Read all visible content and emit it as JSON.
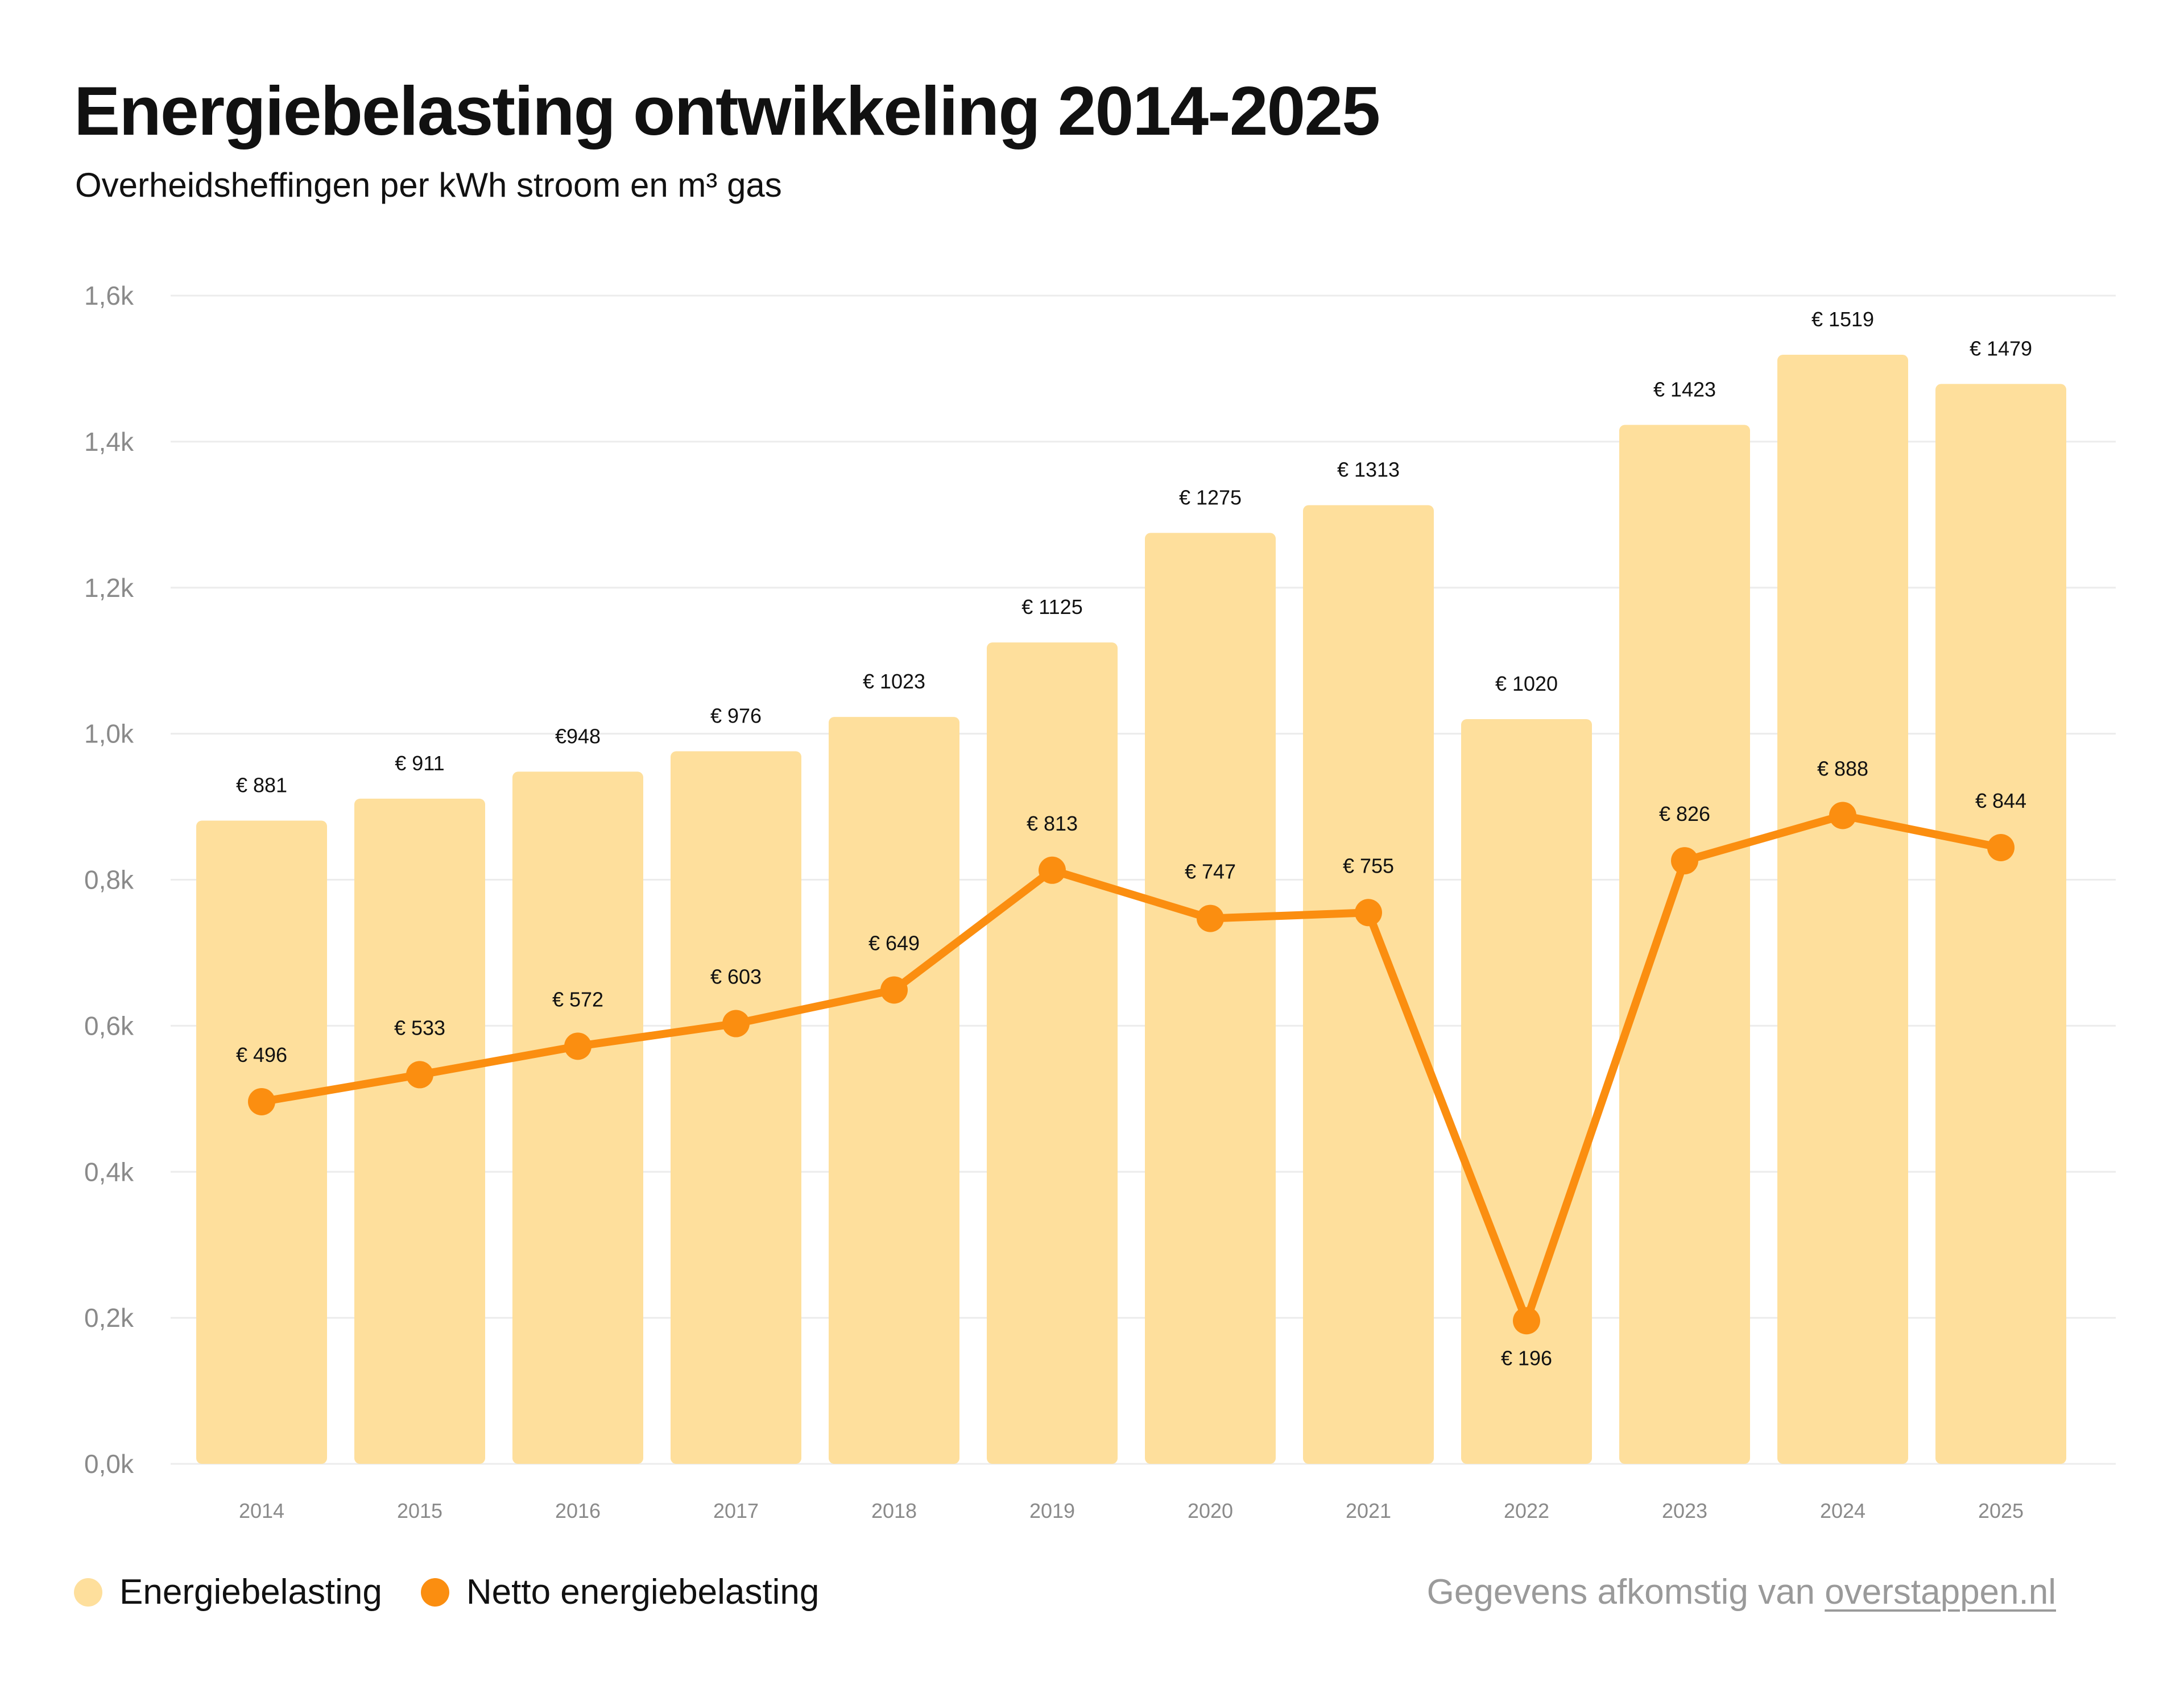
{
  "header": {
    "title": "Energiebelasting ontwikkeling 2014-2025",
    "subtitle": "Overheidsheffingen per kWh stroom en m³ gas"
  },
  "colors": {
    "bar": "#fedf9c",
    "line": "#fb8e10",
    "grid": "#ececec",
    "axis_text": "#8a8a8a",
    "label_text": "#111111"
  },
  "chart_data": {
    "type": "bar",
    "title": "Energiebelasting ontwikkeling 2014-2025",
    "subtitle": "Overheidsheffingen per kWh stroom en m³ gas",
    "categories": [
      "2014",
      "2015",
      "2016",
      "2017",
      "2018",
      "2019",
      "2020",
      "2021",
      "2022",
      "2023",
      "2024",
      "2025"
    ],
    "ylim": [
      0,
      1600
    ],
    "yticks": [
      0,
      200,
      400,
      600,
      800,
      1000,
      1200,
      1400,
      1600
    ],
    "ytick_labels": [
      "0,0k",
      "0,2k",
      "0,4k",
      "0,6k",
      "0,8k",
      "1,0k",
      "1,2k",
      "1,4k",
      "1,6k"
    ],
    "grid": true,
    "series": [
      {
        "name": "Energiebelasting",
        "type": "bar",
        "values": [
          881,
          911,
          948,
          976,
          1023,
          1125,
          1275,
          1313,
          1020,
          1423,
          1519,
          1479
        ],
        "labels": [
          "€ 881",
          "€ 911",
          "€948",
          "€ 976",
          "€ 1023",
          "€ 1125",
          "€ 1275",
          "€ 1313",
          "€ 1020",
          "€ 1423",
          "€ 1519",
          "€ 1479"
        ]
      },
      {
        "name": "Netto energiebelasting",
        "type": "line",
        "values": [
          496,
          533,
          572,
          603,
          649,
          813,
          747,
          755,
          196,
          826,
          888,
          844
        ],
        "labels": [
          "€ 496",
          "€ 533",
          "€ 572",
          "€ 603",
          "€ 649",
          "€ 813",
          "€ 747",
          "€ 755",
          "€ 196",
          "€ 826",
          "€ 888",
          "€ 844"
        ]
      }
    ],
    "legend_position": "bottom-left"
  },
  "legend": {
    "items": [
      {
        "label": "Energiebelasting"
      },
      {
        "label": "Netto energiebelasting"
      }
    ]
  },
  "source": {
    "prefix": "Gegevens afkomstig van ",
    "link": "overstappen.nl"
  }
}
